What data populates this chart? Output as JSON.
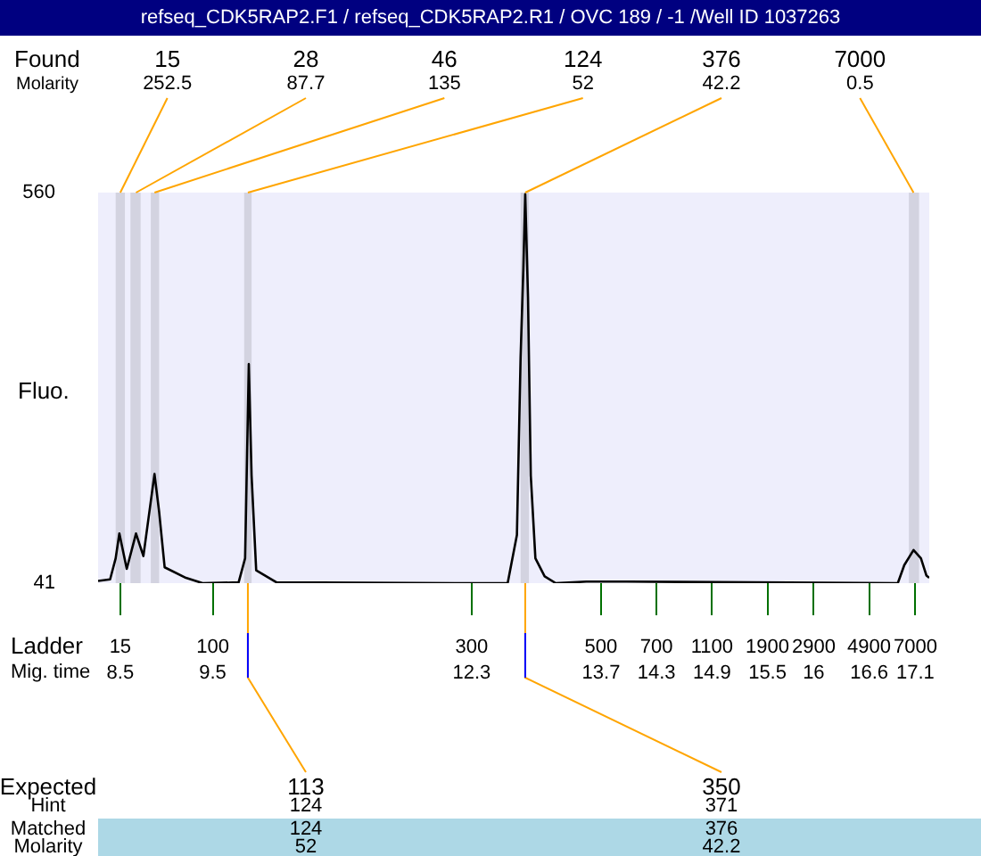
{
  "chart_data": {
    "type": "line",
    "title": "refseq_CDK5RAP2.F1 / refseq_CDK5RAP2.R1 / OVC 189 / -1 /Well ID 1037263",
    "xlabel": "Mig. time",
    "ylabel": "Fluo.",
    "x": [
      8.26,
      8.39,
      8.45,
      8.49,
      8.57,
      8.67,
      8.75,
      8.87,
      8.92,
      8.98,
      9.21,
      9.39,
      9.78,
      9.85,
      9.89,
      9.92,
      9.97,
      10.19,
      12.26,
      12.69,
      12.79,
      12.83,
      12.86,
      12.88,
      12.91,
      12.94,
      12.99,
      13.09,
      13.21,
      13.54,
      13.98,
      16.91,
      16.98,
      17.08,
      17.16,
      17.22,
      17.25
    ],
    "values": [
      44,
      46,
      74,
      107,
      60,
      107,
      77,
      186,
      136,
      62,
      48,
      41,
      42,
      74,
      332,
      184,
      58,
      42,
      41,
      41,
      105,
      342,
      460,
      558,
      421,
      184,
      74,
      50,
      41,
      43,
      43,
      41,
      65,
      85,
      74,
      51,
      48
    ],
    "color": "#000000",
    "xlim": [
      8.26,
      17.25
    ],
    "ylim": [
      41,
      560
    ],
    "yticks": [
      41,
      560
    ],
    "xticks": [
      8.5,
      9.5,
      12.3,
      13.7,
      14.3,
      14.9,
      15.5,
      16,
      16.6,
      17.1
    ],
    "bands": [
      {
        "axis": "x",
        "from": 8.45,
        "to": 8.55,
        "label": "15",
        "color": "#d3d3e0"
      },
      {
        "axis": "x",
        "from": 8.61,
        "to": 8.72,
        "label": "28",
        "color": "#d3d3e0"
      },
      {
        "axis": "x",
        "from": 8.83,
        "to": 8.92,
        "label": "46",
        "color": "#d3d3e0"
      },
      {
        "axis": "x",
        "from": 9.84,
        "to": 9.92,
        "label": "124",
        "color": "#d3d3e0"
      },
      {
        "axis": "x",
        "from": 12.83,
        "to": 12.92,
        "label": "376",
        "color": "#d3d3e0"
      },
      {
        "axis": "x",
        "from": 17.03,
        "to": 17.14,
        "label": "7000",
        "color": "#d3d3e0"
      }
    ],
    "annotations": [
      "Found",
      "Molarity",
      {
        "text": "252.5",
        "x": 8.5,
        "y": 560
      },
      {
        "text": "87.7",
        "x": 8.67,
        "y": 560
      },
      {
        "text": "135",
        "x": 8.87,
        "y": 560
      },
      {
        "text": "52",
        "x": 9.88,
        "y": 560
      },
      {
        "text": "42.2",
        "x": 12.88,
        "y": 560
      },
      {
        "text": "0.5",
        "x": 17.08,
        "y": 560
      },
      "Ladder",
      {
        "text": "15",
        "x": 8.5,
        "y": 41
      },
      {
        "text": "100",
        "x": 9.5,
        "y": 41
      },
      {
        "text": "300",
        "x": 12.3,
        "y": 41
      },
      {
        "text": "500",
        "x": 13.7,
        "y": 41
      },
      {
        "text": "700",
        "x": 14.3,
        "y": 41
      },
      {
        "text": "1100",
        "x": 14.9,
        "y": 41
      },
      {
        "text": "1900",
        "x": 15.5,
        "y": 41
      },
      {
        "text": "2900",
        "x": 16,
        "y": 41
      },
      {
        "text": "4900",
        "x": 16.6,
        "y": 41
      },
      {
        "text": "7000",
        "x": 17.1,
        "y": 41
      },
      "Expected",
      "Hint",
      "Matched",
      "Molarity",
      {
        "text": "113",
        "x": 9.88,
        "y": 41
      },
      "124",
      "124",
      "52",
      {
        "text": "350",
        "x": 12.88,
        "y": 41
      },
      "371",
      "376",
      "42.2"
    ]
  }
}
